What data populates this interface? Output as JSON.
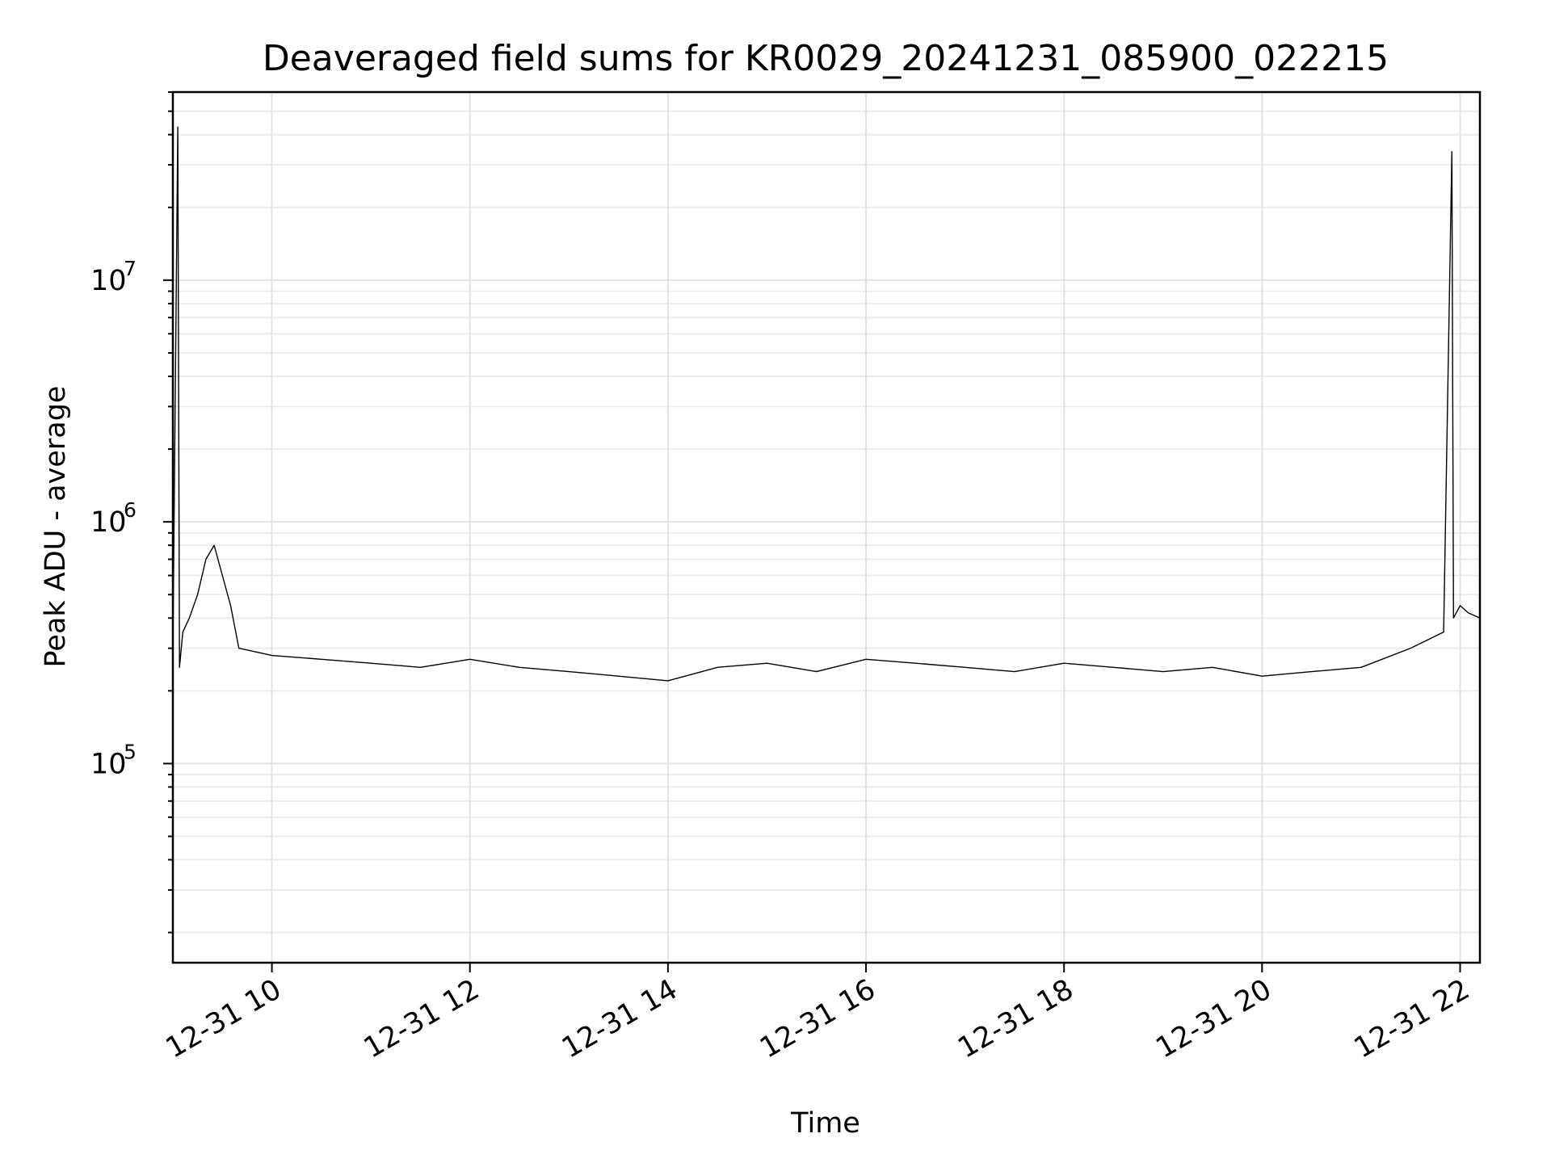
{
  "chart_data": {
    "type": "line",
    "title": "Deaveraged field sums for KR0029_20241231_085900_022215",
    "xlabel": "Time",
    "ylabel": "Peak ADU - average",
    "x_tick_labels": [
      "12-31 10",
      "12-31 12",
      "12-31 14",
      "12-31 16",
      "12-31 18",
      "12-31 20",
      "12-31 22"
    ],
    "x_tick_values": [
      "2024-12-31T10:00",
      "2024-12-31T12:00",
      "2024-12-31T14:00",
      "2024-12-31T16:00",
      "2024-12-31T18:00",
      "2024-12-31T20:00",
      "2024-12-31T22:00"
    ],
    "xlim": [
      "2024-12-31T09:00",
      "2024-12-31T22:12"
    ],
    "y_scale": "log",
    "ylim": [
      15000,
      60000000
    ],
    "y_tick_labels": [
      {
        "base": "10",
        "exp": "5",
        "value": 100000
      },
      {
        "base": "10",
        "exp": "6",
        "value": 1000000
      },
      {
        "base": "10",
        "exp": "7",
        "value": 10000000
      }
    ],
    "grid": "both-major-and-minor",
    "line_color": "#000000",
    "series": [
      {
        "x": [
          "2024-12-31T09:00",
          "2024-12-31T09:03",
          "2024-12-31T09:04",
          "2024-12-31T09:06",
          "2024-12-31T09:10",
          "2024-12-31T09:15",
          "2024-12-31T09:20",
          "2024-12-31T09:25",
          "2024-12-31T09:30",
          "2024-12-31T09:35",
          "2024-12-31T09:40",
          "2024-12-31T10:00",
          "2024-12-31T10:30",
          "2024-12-31T11:00",
          "2024-12-31T11:30",
          "2024-12-31T12:00",
          "2024-12-31T12:30",
          "2024-12-31T13:00",
          "2024-12-31T13:30",
          "2024-12-31T14:00",
          "2024-12-31T14:30",
          "2024-12-31T15:00",
          "2024-12-31T15:30",
          "2024-12-31T16:00",
          "2024-12-31T16:30",
          "2024-12-31T17:00",
          "2024-12-31T17:30",
          "2024-12-31T18:00",
          "2024-12-31T18:30",
          "2024-12-31T19:00",
          "2024-12-31T19:30",
          "2024-12-31T20:00",
          "2024-12-31T20:30",
          "2024-12-31T21:00",
          "2024-12-31T21:30",
          "2024-12-31T21:50",
          "2024-12-31T21:55",
          "2024-12-31T21:56",
          "2024-12-31T22:00",
          "2024-12-31T22:05",
          "2024-12-31T22:12"
        ],
        "y": [
          300000,
          43000000,
          250000,
          350000,
          400000,
          500000,
          700000,
          800000,
          600000,
          450000,
          300000,
          280000,
          270000,
          260000,
          250000,
          270000,
          250000,
          240000,
          230000,
          220000,
          250000,
          260000,
          240000,
          270000,
          260000,
          250000,
          240000,
          260000,
          250000,
          240000,
          250000,
          230000,
          240000,
          250000,
          300000,
          350000,
          34000000,
          400000,
          450000,
          420000,
          400000
        ]
      }
    ]
  }
}
